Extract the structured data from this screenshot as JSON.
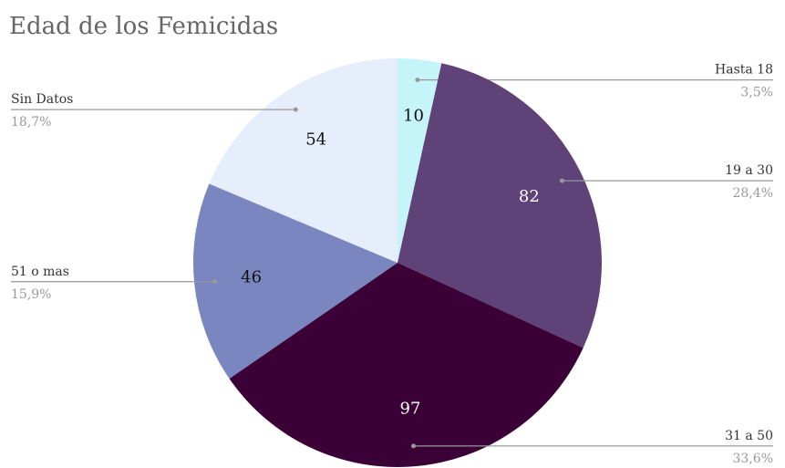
{
  "chart_data": {
    "type": "pie",
    "title": "Edad de los Femicidas",
    "categories": [
      "Hasta 18",
      "19 a 30",
      "31 a 50",
      "51 o mas",
      "Sin Datos"
    ],
    "values": [
      10,
      82,
      97,
      46,
      54
    ],
    "percentages": [
      {
        "value": 3.5,
        "label": "3,5%"
      },
      {
        "value": 28.4,
        "label": "28,4%"
      },
      {
        "value": 33.6,
        "label": "33,6%"
      },
      {
        "value": 15.9,
        "label": "15,9%"
      },
      {
        "value": 18.7,
        "label": "18,7%"
      }
    ],
    "colors": [
      "#c5f4f9",
      "#5e4278",
      "#3b0036",
      "#7a86bf",
      "#e6edfb"
    ],
    "value_label_colors": [
      "#111111",
      "#ffffff",
      "#ffffff",
      "#111111",
      "#111111"
    ]
  }
}
